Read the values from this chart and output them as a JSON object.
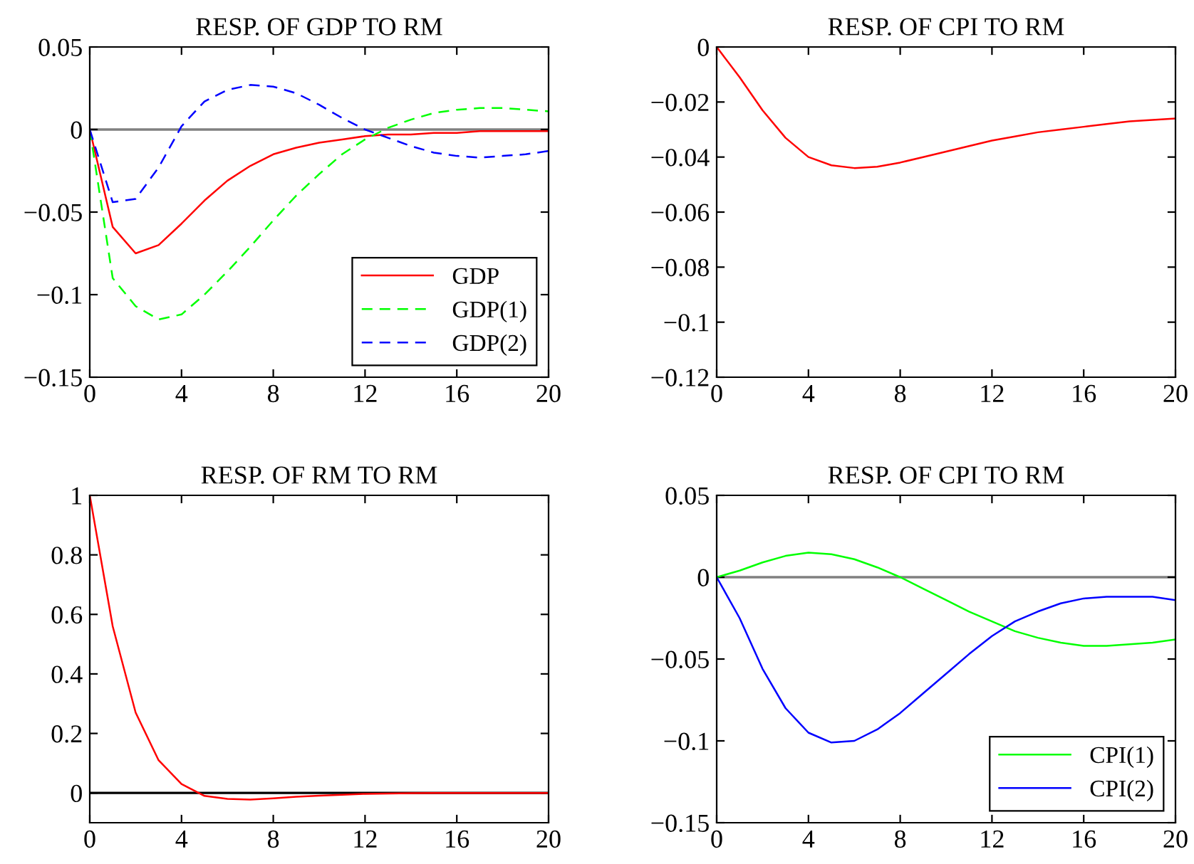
{
  "chart_data": [
    {
      "type": "line",
      "title": "RESP. OF GDP TO RM",
      "x": [
        0,
        1,
        2,
        3,
        4,
        5,
        6,
        7,
        8,
        9,
        10,
        11,
        12,
        13,
        14,
        15,
        16,
        17,
        18,
        19,
        20
      ],
      "xlim": [
        0,
        20
      ],
      "xticks": [
        0,
        4,
        8,
        12,
        16,
        20
      ],
      "ylim": [
        -0.15,
        0.05
      ],
      "yticks": [
        {
          "value": -0.15,
          "label": "−0.15"
        },
        {
          "value": -0.1,
          "label": "−0.1"
        },
        {
          "value": -0.05,
          "label": "−0.05"
        },
        0,
        0.05
      ],
      "legend": "bottom right",
      "grid": false,
      "ref_lines": [
        {
          "axis": "y",
          "value": 0,
          "color": "#808080"
        }
      ],
      "series": [
        {
          "name": "GDP",
          "color": "#ff0000",
          "line_style": "solid",
          "values": [
            0,
            -0.059,
            -0.075,
            -0.07,
            -0.057,
            -0.043,
            -0.031,
            -0.022,
            -0.015,
            -0.011,
            -0.008,
            -0.006,
            -0.004,
            -0.003,
            -0.003,
            -0.002,
            -0.002,
            -0.001,
            -0.001,
            -0.001,
            -0.001
          ]
        },
        {
          "name": "GDP(1)",
          "color": "#00ff00",
          "line_style": "dashed",
          "values": [
            0,
            -0.09,
            -0.107,
            -0.115,
            -0.112,
            -0.1,
            -0.086,
            -0.071,
            -0.055,
            -0.04,
            -0.027,
            -0.015,
            -0.006,
            0.001,
            0.006,
            0.01,
            0.012,
            0.013,
            0.013,
            0.012,
            0.011
          ]
        },
        {
          "name": "GDP(2)",
          "color": "#0000ff",
          "line_style": "dashed",
          "values": [
            0,
            -0.044,
            -0.042,
            -0.023,
            0.002,
            0.017,
            0.024,
            0.027,
            0.026,
            0.022,
            0.015,
            0.007,
            0.0,
            -0.005,
            -0.01,
            -0.014,
            -0.016,
            -0.017,
            -0.016,
            -0.015,
            -0.013
          ]
        }
      ]
    },
    {
      "type": "line",
      "title": "RESP. OF CPI TO RM",
      "x": [
        0,
        1,
        2,
        3,
        4,
        5,
        6,
        7,
        8,
        9,
        10,
        11,
        12,
        13,
        14,
        15,
        16,
        17,
        18,
        19,
        20
      ],
      "xlim": [
        0,
        20
      ],
      "xticks": [
        0,
        4,
        8,
        12,
        16,
        20
      ],
      "ylim": [
        -0.12,
        0
      ],
      "yticks": [
        {
          "value": -0.12,
          "label": "−0.12"
        },
        {
          "value": -0.1,
          "label": "−0.1"
        },
        {
          "value": -0.08,
          "label": "−0.08"
        },
        {
          "value": -0.06,
          "label": "−0.06"
        },
        {
          "value": -0.04,
          "label": "−0.04"
        },
        {
          "value": -0.02,
          "label": "−0.02"
        },
        0
      ],
      "legend": false,
      "grid": false,
      "series": [
        {
          "color": "#ff0000",
          "line_style": "solid",
          "values": [
            0,
            -0.011,
            -0.023,
            -0.033,
            -0.04,
            -0.043,
            -0.044,
            -0.0435,
            -0.042,
            -0.04,
            -0.038,
            -0.036,
            -0.034,
            -0.0325,
            -0.031,
            -0.03,
            -0.029,
            -0.028,
            -0.027,
            -0.0265,
            -0.026
          ]
        }
      ]
    },
    {
      "type": "line",
      "title": "RESP. OF RM TO RM",
      "x": [
        0,
        1,
        2,
        3,
        4,
        5,
        6,
        7,
        8,
        9,
        10,
        11,
        12,
        13,
        14,
        15,
        16,
        17,
        18,
        19,
        20
      ],
      "xlim": [
        0,
        20
      ],
      "xticks": [
        0,
        4,
        8,
        12,
        16,
        20
      ],
      "ylim": [
        -0.1,
        1
      ],
      "yticks": [
        0,
        0.2,
        0.4,
        0.6,
        0.8,
        1
      ],
      "legend": false,
      "grid": false,
      "ref_lines": [
        {
          "axis": "y",
          "value": 0,
          "color": "#000000"
        }
      ],
      "series": [
        {
          "color": "#ff0000",
          "line_style": "solid",
          "values": [
            1,
            0.56,
            0.27,
            0.11,
            0.03,
            -0.01,
            -0.02,
            -0.022,
            -0.018,
            -0.013,
            -0.009,
            -0.006,
            -0.003,
            -0.002,
            -0.001,
            0,
            0,
            0,
            0,
            0,
            0
          ]
        }
      ]
    },
    {
      "type": "line",
      "title": "RESP. OF CPI TO RM",
      "x": [
        0,
        1,
        2,
        3,
        4,
        5,
        6,
        7,
        8,
        9,
        10,
        11,
        12,
        13,
        14,
        15,
        16,
        17,
        18,
        19,
        20
      ],
      "xlim": [
        0,
        20
      ],
      "xticks": [
        0,
        4,
        8,
        12,
        16,
        20
      ],
      "ylim": [
        -0.15,
        0.05
      ],
      "yticks": [
        {
          "value": -0.15,
          "label": "−0.15"
        },
        {
          "value": -0.1,
          "label": "−0.1"
        },
        {
          "value": -0.05,
          "label": "−0.05"
        },
        0,
        0.05
      ],
      "legend": "bottom right",
      "grid": false,
      "ref_lines": [
        {
          "axis": "y",
          "value": 0,
          "color": "#808080"
        }
      ],
      "series": [
        {
          "name": "CPI(1)",
          "color": "#00ff00",
          "line_style": "solid",
          "values": [
            0,
            0.004,
            0.009,
            0.013,
            0.015,
            0.014,
            0.011,
            0.006,
            0.0,
            -0.007,
            -0.014,
            -0.021,
            -0.027,
            -0.033,
            -0.037,
            -0.04,
            -0.042,
            -0.042,
            -0.041,
            -0.04,
            -0.038
          ]
        },
        {
          "name": "CPI(2)",
          "color": "#0000ff",
          "line_style": "solid",
          "values": [
            0,
            -0.025,
            -0.056,
            -0.08,
            -0.095,
            -0.101,
            -0.1,
            -0.093,
            -0.083,
            -0.071,
            -0.059,
            -0.047,
            -0.036,
            -0.027,
            -0.021,
            -0.016,
            -0.013,
            -0.012,
            -0.012,
            -0.012,
            -0.014
          ]
        }
      ]
    }
  ]
}
